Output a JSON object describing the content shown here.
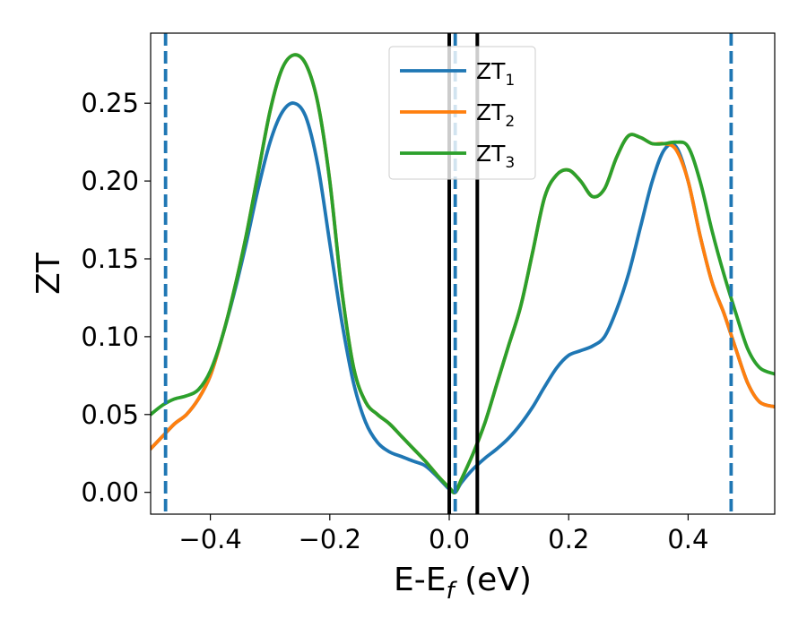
{
  "chart_data": {
    "type": "line",
    "xlabel": "E-E",
    "xlabel_sub": "f",
    "xlabel_unit": " (eV)",
    "ylabel": "ZT",
    "xlim": [
      -0.5,
      0.545
    ],
    "ylim": [
      -0.014,
      0.295
    ],
    "xticks": [
      -0.4,
      -0.2,
      0.0,
      0.2,
      0.4
    ],
    "xtick_labels": [
      "−0.4",
      "−0.2",
      "0.0",
      "0.2",
      "0.4"
    ],
    "yticks": [
      0.0,
      0.05,
      0.1,
      0.15,
      0.2,
      0.25
    ],
    "ytick_labels": [
      "0.00",
      "0.05",
      "0.10",
      "0.15",
      "0.20",
      "0.25"
    ],
    "grid": false,
    "legend_position": "top-center",
    "series": [
      {
        "name": "ZT",
        "name_sub": "1",
        "color": "#1f77b4",
        "points": [
          [
            -0.5,
            0.028
          ],
          [
            -0.48,
            0.036
          ],
          [
            -0.46,
            0.044
          ],
          [
            -0.44,
            0.05
          ],
          [
            -0.42,
            0.06
          ],
          [
            -0.4,
            0.075
          ],
          [
            -0.38,
            0.1
          ],
          [
            -0.36,
            0.128
          ],
          [
            -0.34,
            0.16
          ],
          [
            -0.32,
            0.195
          ],
          [
            -0.3,
            0.225
          ],
          [
            -0.28,
            0.244
          ],
          [
            -0.26,
            0.25
          ],
          [
            -0.24,
            0.241
          ],
          [
            -0.22,
            0.21
          ],
          [
            -0.2,
            0.16
          ],
          [
            -0.18,
            0.11
          ],
          [
            -0.16,
            0.07
          ],
          [
            -0.14,
            0.045
          ],
          [
            -0.12,
            0.032
          ],
          [
            -0.1,
            0.026
          ],
          [
            -0.08,
            0.023
          ],
          [
            -0.06,
            0.02
          ],
          [
            -0.04,
            0.017
          ],
          [
            -0.02,
            0.01
          ],
          [
            0.0,
            0.002
          ],
          [
            0.01,
            0.0
          ],
          [
            0.02,
            0.006
          ],
          [
            0.04,
            0.015
          ],
          [
            0.06,
            0.022
          ],
          [
            0.08,
            0.028
          ],
          [
            0.1,
            0.035
          ],
          [
            0.12,
            0.044
          ],
          [
            0.14,
            0.055
          ],
          [
            0.16,
            0.068
          ],
          [
            0.18,
            0.08
          ],
          [
            0.2,
            0.088
          ],
          [
            0.22,
            0.091
          ],
          [
            0.24,
            0.094
          ],
          [
            0.26,
            0.1
          ],
          [
            0.28,
            0.117
          ],
          [
            0.3,
            0.14
          ],
          [
            0.32,
            0.17
          ],
          [
            0.34,
            0.2
          ],
          [
            0.36,
            0.22
          ],
          [
            0.38,
            0.222
          ],
          [
            0.4,
            0.2
          ],
          [
            0.42,
            0.165
          ],
          [
            0.44,
            0.135
          ],
          [
            0.46,
            0.115
          ],
          [
            0.48,
            0.092
          ],
          [
            0.5,
            0.07
          ],
          [
            0.52,
            0.058
          ],
          [
            0.545,
            0.055
          ]
        ]
      },
      {
        "name": "ZT",
        "name_sub": "2",
        "color": "#ff7f0e",
        "points": [
          [
            -0.5,
            0.028
          ],
          [
            -0.48,
            0.036
          ],
          [
            -0.46,
            0.044
          ],
          [
            -0.44,
            0.05
          ],
          [
            -0.42,
            0.06
          ],
          [
            -0.4,
            0.075
          ],
          [
            -0.38,
            0.1
          ],
          [
            -0.36,
            0.13
          ],
          [
            -0.34,
            0.165
          ],
          [
            -0.32,
            0.205
          ],
          [
            -0.3,
            0.245
          ],
          [
            -0.28,
            0.272
          ],
          [
            -0.26,
            0.281
          ],
          [
            -0.24,
            0.275
          ],
          [
            -0.22,
            0.25
          ],
          [
            -0.2,
            0.2
          ],
          [
            -0.18,
            0.13
          ],
          [
            -0.16,
            0.08
          ],
          [
            -0.14,
            0.058
          ],
          [
            -0.12,
            0.05
          ],
          [
            -0.1,
            0.044
          ],
          [
            -0.08,
            0.036
          ],
          [
            -0.06,
            0.028
          ],
          [
            -0.04,
            0.02
          ],
          [
            -0.02,
            0.011
          ],
          [
            0.0,
            0.003
          ],
          [
            0.01,
            0.0
          ],
          [
            0.02,
            0.008
          ],
          [
            0.04,
            0.025
          ],
          [
            0.06,
            0.045
          ],
          [
            0.08,
            0.07
          ],
          [
            0.1,
            0.095
          ],
          [
            0.12,
            0.12
          ],
          [
            0.14,
            0.155
          ],
          [
            0.16,
            0.19
          ],
          [
            0.18,
            0.204
          ],
          [
            0.2,
            0.207
          ],
          [
            0.22,
            0.2
          ],
          [
            0.24,
            0.19
          ],
          [
            0.26,
            0.195
          ],
          [
            0.28,
            0.215
          ],
          [
            0.3,
            0.229
          ],
          [
            0.32,
            0.228
          ],
          [
            0.34,
            0.224
          ],
          [
            0.36,
            0.224
          ],
          [
            0.38,
            0.22
          ],
          [
            0.4,
            0.2
          ],
          [
            0.42,
            0.165
          ],
          [
            0.44,
            0.135
          ],
          [
            0.46,
            0.115
          ],
          [
            0.48,
            0.092
          ],
          [
            0.5,
            0.07
          ],
          [
            0.52,
            0.058
          ],
          [
            0.545,
            0.055
          ]
        ]
      },
      {
        "name": "ZT",
        "name_sub": "3",
        "color": "#2ca02c",
        "points": [
          [
            -0.5,
            0.05
          ],
          [
            -0.48,
            0.056
          ],
          [
            -0.46,
            0.06
          ],
          [
            -0.44,
            0.062
          ],
          [
            -0.42,
            0.066
          ],
          [
            -0.4,
            0.078
          ],
          [
            -0.38,
            0.1
          ],
          [
            -0.36,
            0.13
          ],
          [
            -0.34,
            0.165
          ],
          [
            -0.32,
            0.205
          ],
          [
            -0.3,
            0.245
          ],
          [
            -0.28,
            0.272
          ],
          [
            -0.26,
            0.281
          ],
          [
            -0.24,
            0.275
          ],
          [
            -0.22,
            0.25
          ],
          [
            -0.2,
            0.2
          ],
          [
            -0.18,
            0.13
          ],
          [
            -0.16,
            0.08
          ],
          [
            -0.14,
            0.058
          ],
          [
            -0.12,
            0.05
          ],
          [
            -0.1,
            0.044
          ],
          [
            -0.08,
            0.036
          ],
          [
            -0.06,
            0.028
          ],
          [
            -0.04,
            0.02
          ],
          [
            -0.02,
            0.011
          ],
          [
            0.0,
            0.003
          ],
          [
            0.01,
            0.0
          ],
          [
            0.02,
            0.008
          ],
          [
            0.04,
            0.025
          ],
          [
            0.06,
            0.045
          ],
          [
            0.08,
            0.07
          ],
          [
            0.1,
            0.095
          ],
          [
            0.12,
            0.12
          ],
          [
            0.14,
            0.155
          ],
          [
            0.16,
            0.19
          ],
          [
            0.18,
            0.204
          ],
          [
            0.2,
            0.207
          ],
          [
            0.22,
            0.2
          ],
          [
            0.24,
            0.19
          ],
          [
            0.26,
            0.195
          ],
          [
            0.28,
            0.215
          ],
          [
            0.3,
            0.229
          ],
          [
            0.32,
            0.228
          ],
          [
            0.34,
            0.224
          ],
          [
            0.36,
            0.224
          ],
          [
            0.38,
            0.225
          ],
          [
            0.4,
            0.222
          ],
          [
            0.42,
            0.2
          ],
          [
            0.44,
            0.168
          ],
          [
            0.46,
            0.14
          ],
          [
            0.48,
            0.115
          ],
          [
            0.5,
            0.092
          ],
          [
            0.52,
            0.08
          ],
          [
            0.545,
            0.076
          ]
        ]
      }
    ],
    "vlines": [
      {
        "x": 0.0,
        "color": "#000000",
        "style": "solid"
      },
      {
        "x": 0.047,
        "color": "#000000",
        "style": "solid"
      },
      {
        "x": -0.475,
        "color": "#1f77b4",
        "style": "dashed"
      },
      {
        "x": 0.01,
        "color": "#1f77b4",
        "style": "dashed"
      },
      {
        "x": 0.472,
        "color": "#1f77b4",
        "style": "dashed"
      }
    ]
  }
}
